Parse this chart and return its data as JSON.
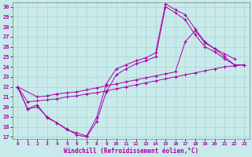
{
  "xlabel": "Windchill (Refroidissement éolien,°C)",
  "bg_color": "#c8eaea",
  "grid_color": "#a8d4d4",
  "line_color": "#aa00aa",
  "xlim": [
    -0.5,
    23.5
  ],
  "ylim": [
    16.8,
    30.4
  ],
  "xticks": [
    0,
    1,
    2,
    3,
    4,
    5,
    6,
    7,
    8,
    9,
    10,
    11,
    12,
    13,
    14,
    15,
    16,
    17,
    18,
    19,
    20,
    21,
    22,
    23
  ],
  "yticks": [
    17,
    18,
    19,
    20,
    21,
    22,
    23,
    24,
    25,
    26,
    27,
    28,
    29,
    30
  ],
  "curve1_x": [
    0,
    1,
    2,
    3,
    4,
    5,
    6,
    7,
    8,
    9,
    10,
    11,
    12,
    13,
    14,
    15,
    16,
    17,
    18,
    19,
    20,
    21,
    22
  ],
  "curve1_y": [
    22.0,
    19.8,
    20.2,
    18.9,
    18.4,
    17.7,
    17.4,
    17.1,
    18.9,
    22.3,
    23.8,
    24.2,
    24.6,
    24.9,
    25.4,
    30.3,
    29.7,
    29.2,
    27.8,
    26.5,
    25.8,
    25.3,
    24.8
  ],
  "curve2_x": [
    0,
    1,
    2,
    3,
    4,
    5,
    6,
    7,
    8,
    9,
    10,
    11,
    12,
    13,
    14,
    15,
    16,
    17,
    18,
    19,
    20,
    21,
    22
  ],
  "curve2_y": [
    22.0,
    19.8,
    20.0,
    19.0,
    18.4,
    17.8,
    17.2,
    17.0,
    18.5,
    21.5,
    23.2,
    23.8,
    24.3,
    24.6,
    25.0,
    30.0,
    29.4,
    28.7,
    27.2,
    26.0,
    25.5,
    24.8,
    24.2
  ],
  "curve3_x": [
    0,
    2,
    3,
    4,
    5,
    6,
    7,
    8,
    9,
    10,
    11,
    12,
    13,
    14,
    15,
    16,
    17,
    18,
    19,
    20,
    21,
    22,
    23
  ],
  "curve3_y": [
    22.0,
    21.0,
    21.1,
    21.3,
    21.4,
    21.5,
    21.7,
    21.9,
    22.1,
    22.3,
    22.5,
    22.7,
    22.9,
    23.1,
    23.3,
    23.5,
    26.5,
    27.6,
    26.4,
    25.8,
    25.0,
    24.2,
    24.2
  ],
  "curve4_x": [
    0,
    1,
    2,
    3,
    4,
    5,
    6,
    7,
    8,
    9,
    10,
    11,
    12,
    13,
    14,
    15,
    16,
    17,
    18,
    19,
    20,
    21,
    22,
    23
  ],
  "curve4_y": [
    22.0,
    20.5,
    20.6,
    20.7,
    20.8,
    21.0,
    21.1,
    21.3,
    21.4,
    21.6,
    21.8,
    22.0,
    22.2,
    22.4,
    22.6,
    22.8,
    23.0,
    23.2,
    23.4,
    23.6,
    23.8,
    24.0,
    24.1,
    24.2
  ]
}
